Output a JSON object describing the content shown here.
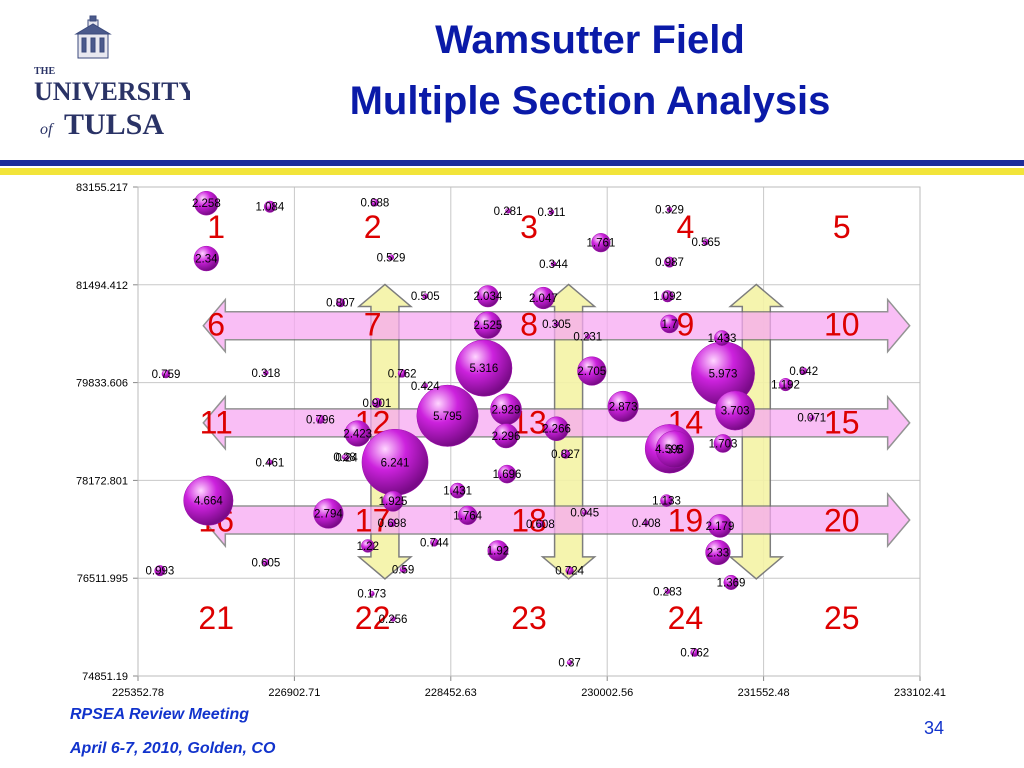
{
  "header": {
    "title_line1": "Wamsutter Field",
    "title_line2": "Multiple Section Analysis",
    "logo": {
      "the": "THE",
      "university": "UNIVERSITY",
      "of": "of",
      "tulsa": "TULSA"
    }
  },
  "footer": {
    "line1": "RPSEA Review Meeting",
    "line2": "April 6-7, 2010, Golden, CO",
    "page_number": "34"
  },
  "colors": {
    "title": "#0a1aa8",
    "bubble": "#cc22dd",
    "section_number": "#dd0000",
    "arrow_horizontal_fill": "#f7a9f2",
    "arrow_vertical_fill": "#f4f3a6",
    "footer_text": "#1133cc"
  },
  "chart_data": {
    "type": "scatter",
    "subtype": "bubble",
    "title": "",
    "xlabel": "",
    "ylabel": "",
    "xlim": [
      225352.78,
      233102.41
    ],
    "ylim": [
      74851.19,
      83155.217
    ],
    "x_ticks": [
      "225352.78",
      "226902.71",
      "228452.63",
      "230002.56",
      "231552.48",
      "233102.41"
    ],
    "y_ticks": [
      "83155.217",
      "81494.412",
      "79833.606",
      "78172.801",
      "76511.995",
      "74851.19"
    ],
    "grid": true,
    "legend": "none",
    "section_numbers": [
      {
        "label": "1",
        "col": 0,
        "row": 0
      },
      {
        "label": "2",
        "col": 1,
        "row": 0
      },
      {
        "label": "3",
        "col": 2,
        "row": 0
      },
      {
        "label": "4",
        "col": 3,
        "row": 0
      },
      {
        "label": "5",
        "col": 4,
        "row": 0
      },
      {
        "label": "6",
        "col": 0,
        "row": 1
      },
      {
        "label": "7",
        "col": 1,
        "row": 1
      },
      {
        "label": "8",
        "col": 2,
        "row": 1
      },
      {
        "label": "9",
        "col": 3,
        "row": 1
      },
      {
        "label": "10",
        "col": 4,
        "row": 1
      },
      {
        "label": "11",
        "col": 0,
        "row": 2
      },
      {
        "label": "12",
        "col": 1,
        "row": 2
      },
      {
        "label": "13",
        "col": 2,
        "row": 2
      },
      {
        "label": "14",
        "col": 3,
        "row": 2
      },
      {
        "label": "15",
        "col": 4,
        "row": 2
      },
      {
        "label": "16",
        "col": 0,
        "row": 3
      },
      {
        "label": "17",
        "col": 1,
        "row": 3
      },
      {
        "label": "18",
        "col": 2,
        "row": 3
      },
      {
        "label": "19",
        "col": 3,
        "row": 3
      },
      {
        "label": "20",
        "col": 4,
        "row": 3
      },
      {
        "label": "21",
        "col": 0,
        "row": 4
      },
      {
        "label": "22",
        "col": 1,
        "row": 4
      },
      {
        "label": "23",
        "col": 2,
        "row": 4
      },
      {
        "label": "24",
        "col": 3,
        "row": 4
      },
      {
        "label": "25",
        "col": 4,
        "row": 4
      }
    ],
    "arrows": {
      "horizontal_y": [
        80800,
        79150,
        77500
      ],
      "vertical_x": [
        227800,
        229620,
        231480
      ],
      "horizontal_x_range": [
        226000,
        233000
      ],
      "vertical_y_range": [
        76500,
        81500
      ]
    },
    "points": [
      {
        "x": 226030,
        "y": 82880,
        "v": 2.258,
        "label": "2.258"
      },
      {
        "x": 226660,
        "y": 82820,
        "v": 1.084,
        "label": "1.084"
      },
      {
        "x": 226030,
        "y": 81940,
        "v": 2.34,
        "label": "2.34"
      },
      {
        "x": 227700,
        "y": 82890,
        "v": 0.688,
        "label": "0.688"
      },
      {
        "x": 227860,
        "y": 81960,
        "v": 0.529,
        "label": "0.529"
      },
      {
        "x": 229020,
        "y": 82750,
        "v": 0.281,
        "label": "0.281"
      },
      {
        "x": 229450,
        "y": 82730,
        "v": 0.311,
        "label": "0.311"
      },
      {
        "x": 229940,
        "y": 82210,
        "v": 1.761,
        "label": "1.761"
      },
      {
        "x": 229470,
        "y": 81850,
        "v": 0.344,
        "label": "0.344"
      },
      {
        "x": 230620,
        "y": 82770,
        "v": 0.329,
        "label": "0.329"
      },
      {
        "x": 230980,
        "y": 82220,
        "v": 0.565,
        "label": "0.565"
      },
      {
        "x": 230620,
        "y": 81880,
        "v": 0.987,
        "label": "0.987"
      },
      {
        "x": 227360,
        "y": 81190,
        "v": 0.807,
        "label": "0.807"
      },
      {
        "x": 228200,
        "y": 81300,
        "v": 0.505,
        "label": "0.505"
      },
      {
        "x": 228820,
        "y": 81300,
        "v": 2.034,
        "label": "2.034"
      },
      {
        "x": 229370,
        "y": 81270,
        "v": 2.047,
        "label": "2.047"
      },
      {
        "x": 230600,
        "y": 81300,
        "v": 1.092,
        "label": "1.092"
      },
      {
        "x": 228820,
        "y": 80810,
        "v": 2.525,
        "label": "2.525"
      },
      {
        "x": 229500,
        "y": 80830,
        "v": 0.305,
        "label": "0.305"
      },
      {
        "x": 229810,
        "y": 80620,
        "v": 0.231,
        "label": "0.231"
      },
      {
        "x": 230620,
        "y": 80830,
        "v": 1.7,
        "label": "1.7"
      },
      {
        "x": 231140,
        "y": 80590,
        "v": 1.433,
        "label": "1.433"
      },
      {
        "x": 225630,
        "y": 79980,
        "v": 0.759,
        "label": "0.759"
      },
      {
        "x": 226620,
        "y": 80000,
        "v": 0.318,
        "label": "0.318"
      },
      {
        "x": 227970,
        "y": 79990,
        "v": 0.762,
        "label": "0.762"
      },
      {
        "x": 228780,
        "y": 80080,
        "v": 5.316,
        "label": "5.316"
      },
      {
        "x": 229850,
        "y": 80030,
        "v": 2.705,
        "label": "2.705"
      },
      {
        "x": 231150,
        "y": 79990,
        "v": 5.973,
        "label": "5.973"
      },
      {
        "x": 231950,
        "y": 80030,
        "v": 0.642,
        "label": "0.642"
      },
      {
        "x": 231770,
        "y": 79800,
        "v": 1.192,
        "label": "1.192"
      },
      {
        "x": 228200,
        "y": 79780,
        "v": 0.424,
        "label": "0.424"
      },
      {
        "x": 227720,
        "y": 79490,
        "v": 0.901,
        "label": "0.901"
      },
      {
        "x": 228420,
        "y": 79270,
        "v": 5.795,
        "label": "5.795"
      },
      {
        "x": 229000,
        "y": 79380,
        "v": 2.929,
        "label": "2.929"
      },
      {
        "x": 230160,
        "y": 79430,
        "v": 2.873,
        "label": "2.873"
      },
      {
        "x": 231270,
        "y": 79360,
        "v": 3.703,
        "label": "3.703"
      },
      {
        "x": 232030,
        "y": 79240,
        "v": 0.071,
        "label": "0.071"
      },
      {
        "x": 227160,
        "y": 79210,
        "v": 0.796,
        "label": "0.796"
      },
      {
        "x": 227530,
        "y": 78970,
        "v": 2.423,
        "label": "2.423"
      },
      {
        "x": 229000,
        "y": 78930,
        "v": 2.296,
        "label": "2.296"
      },
      {
        "x": 229500,
        "y": 79050,
        "v": 2.266,
        "label": "2.266"
      },
      {
        "x": 230620,
        "y": 78710,
        "v": 4.598,
        "label": "4.598"
      },
      {
        "x": 230670,
        "y": 78700,
        "v": 3.5,
        "label": "3.5"
      },
      {
        "x": 231150,
        "y": 78800,
        "v": 1.703,
        "label": "1.703"
      },
      {
        "x": 229590,
        "y": 78620,
        "v": 0.827,
        "label": "0.827"
      },
      {
        "x": 226660,
        "y": 78480,
        "v": 0.461,
        "label": "0.461"
      },
      {
        "x": 227400,
        "y": 78570,
        "v": 0.28,
        "label": "0.28"
      },
      {
        "x": 227420,
        "y": 78560,
        "v": 0.24,
        "label": "0.24"
      },
      {
        "x": 227900,
        "y": 78480,
        "v": 6.241,
        "label": "6.241"
      },
      {
        "x": 229010,
        "y": 78280,
        "v": 1.696,
        "label": "1.696"
      },
      {
        "x": 228520,
        "y": 78000,
        "v": 1.431,
        "label": "1.431"
      },
      {
        "x": 226050,
        "y": 77830,
        "v": 4.664,
        "label": "4.664"
      },
      {
        "x": 227880,
        "y": 77820,
        "v": 1.925,
        "label": "1.925"
      },
      {
        "x": 230590,
        "y": 77830,
        "v": 1.133,
        "label": "1.133"
      },
      {
        "x": 227240,
        "y": 77610,
        "v": 2.794,
        "label": "2.794"
      },
      {
        "x": 228620,
        "y": 77580,
        "v": 1.764,
        "label": "1.764"
      },
      {
        "x": 229780,
        "y": 77630,
        "v": 0.045,
        "label": "0.045"
      },
      {
        "x": 227870,
        "y": 77450,
        "v": 0.698,
        "label": "0.698"
      },
      {
        "x": 229340,
        "y": 77430,
        "v": 0.608,
        "label": "0.608"
      },
      {
        "x": 230390,
        "y": 77450,
        "v": 0.408,
        "label": "0.408"
      },
      {
        "x": 231120,
        "y": 77400,
        "v": 2.179,
        "label": "2.179"
      },
      {
        "x": 227630,
        "y": 77060,
        "v": 1.22,
        "label": "1.22"
      },
      {
        "x": 228290,
        "y": 77120,
        "v": 0.744,
        "label": "0.744"
      },
      {
        "x": 228920,
        "y": 76980,
        "v": 1.92,
        "label": "1.92"
      },
      {
        "x": 231100,
        "y": 76950,
        "v": 2.33,
        "label": "2.33"
      },
      {
        "x": 225570,
        "y": 76640,
        "v": 0.993,
        "label": "0.993"
      },
      {
        "x": 226620,
        "y": 76780,
        "v": 0.605,
        "label": "0.605"
      },
      {
        "x": 227980,
        "y": 76660,
        "v": 0.59,
        "label": "0.59"
      },
      {
        "x": 229630,
        "y": 76640,
        "v": 0.724,
        "label": "0.724"
      },
      {
        "x": 231230,
        "y": 76440,
        "v": 1.369,
        "label": "1.369"
      },
      {
        "x": 230600,
        "y": 76290,
        "v": 0.283,
        "label": "0.283"
      },
      {
        "x": 227670,
        "y": 76250,
        "v": 0.173,
        "label": "0.173"
      },
      {
        "x": 227880,
        "y": 75820,
        "v": 0.256,
        "label": "0.256"
      },
      {
        "x": 230870,
        "y": 75250,
        "v": 0.762,
        "label": "0.762"
      },
      {
        "x": 229630,
        "y": 75080,
        "v": 0.37,
        "label": "0.37"
      }
    ]
  }
}
